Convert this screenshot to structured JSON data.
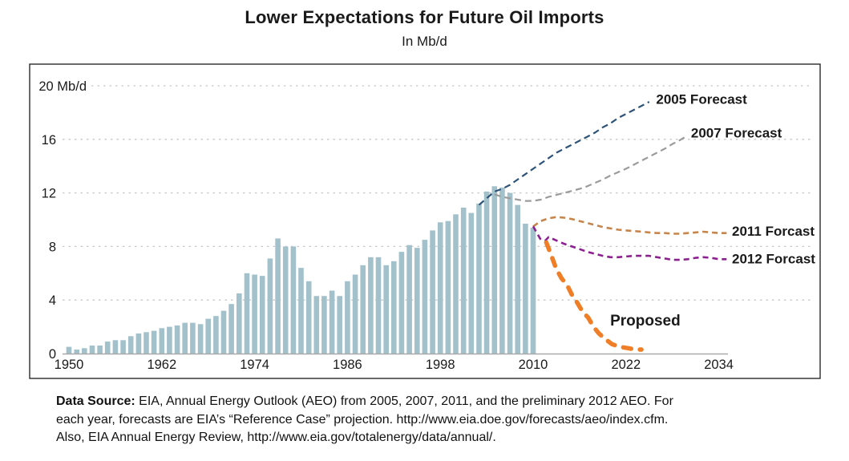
{
  "chart_data": {
    "type": "bar+line",
    "title": "Lower Expectations for Future Oil Imports",
    "subtitle": "In Mb/d",
    "ylabel": "Mb/d",
    "ylim": [
      0,
      20
    ],
    "grid": "dotted horizontal",
    "legend_position": "labels at line ends",
    "yticks": [
      {
        "value": 20,
        "label": "20 Mb/d"
      },
      {
        "value": 16,
        "label": "16"
      },
      {
        "value": 12,
        "label": "12"
      },
      {
        "value": 8,
        "label": "8"
      },
      {
        "value": 4,
        "label": "4"
      },
      {
        "value": 0,
        "label": "0"
      }
    ],
    "xticks": [
      "1950",
      "1962",
      "1974",
      "1986",
      "1998",
      "2010",
      "2022",
      "2034"
    ],
    "bars": {
      "name": "Historical net oil imports",
      "color": "#a3c1cb",
      "years": [
        1950,
        1951,
        1952,
        1953,
        1954,
        1955,
        1956,
        1957,
        1958,
        1959,
        1960,
        1961,
        1962,
        1963,
        1964,
        1965,
        1966,
        1967,
        1968,
        1969,
        1970,
        1971,
        1972,
        1973,
        1974,
        1975,
        1976,
        1977,
        1978,
        1979,
        1980,
        1981,
        1982,
        1983,
        1984,
        1985,
        1986,
        1987,
        1988,
        1989,
        1990,
        1991,
        1992,
        1993,
        1994,
        1995,
        1996,
        1997,
        1998,
        1999,
        2000,
        2001,
        2002,
        2003,
        2004,
        2005,
        2006,
        2007,
        2008,
        2009,
        2010
      ],
      "values": [
        0.5,
        0.3,
        0.4,
        0.6,
        0.6,
        0.9,
        1.0,
        1.0,
        1.3,
        1.5,
        1.6,
        1.7,
        1.9,
        2.0,
        2.1,
        2.3,
        2.3,
        2.2,
        2.6,
        2.8,
        3.2,
        3.7,
        4.5,
        6.0,
        5.9,
        5.8,
        7.1,
        8.6,
        8.0,
        8.0,
        6.4,
        5.4,
        4.3,
        4.3,
        4.7,
        4.3,
        5.4,
        5.9,
        6.6,
        7.2,
        7.2,
        6.6,
        6.9,
        7.6,
        8.1,
        7.9,
        8.5,
        9.2,
        9.8,
        9.9,
        10.4,
        10.9,
        10.5,
        11.2,
        12.1,
        12.5,
        12.4,
        12.0,
        11.1,
        9.7,
        9.4
      ]
    },
    "lines": [
      {
        "name": "2005 Forecast",
        "color": "#2d5379",
        "width": 2.2,
        "dash": "8 5",
        "points": [
          [
            2003,
            11.1
          ],
          [
            2004,
            11.6
          ],
          [
            2005,
            12.1
          ],
          [
            2006,
            12.3
          ],
          [
            2007,
            12.6
          ],
          [
            2008,
            13.0
          ],
          [
            2009,
            13.4
          ],
          [
            2010,
            13.8
          ],
          [
            2011,
            14.2
          ],
          [
            2012,
            14.6
          ],
          [
            2013,
            15.0
          ],
          [
            2014,
            15.3
          ],
          [
            2015,
            15.6
          ],
          [
            2016,
            15.9
          ],
          [
            2017,
            16.2
          ],
          [
            2018,
            16.5
          ],
          [
            2019,
            16.9
          ],
          [
            2020,
            17.2
          ],
          [
            2021,
            17.6
          ],
          [
            2022,
            17.9
          ],
          [
            2023,
            18.2
          ],
          [
            2024,
            18.5
          ],
          [
            2025,
            18.8
          ]
        ]
      },
      {
        "name": "2007 Forecast",
        "color": "#9b9b9b",
        "width": 2.2,
        "dash": "8 5",
        "points": [
          [
            2005,
            11.9
          ],
          [
            2006,
            11.7
          ],
          [
            2007,
            11.6
          ],
          [
            2008,
            11.5
          ],
          [
            2009,
            11.4
          ],
          [
            2010,
            11.4
          ],
          [
            2011,
            11.5
          ],
          [
            2012,
            11.7
          ],
          [
            2013,
            11.85
          ],
          [
            2014,
            12.0
          ],
          [
            2015,
            12.15
          ],
          [
            2016,
            12.3
          ],
          [
            2017,
            12.5
          ],
          [
            2018,
            12.75
          ],
          [
            2019,
            13.0
          ],
          [
            2020,
            13.3
          ],
          [
            2021,
            13.55
          ],
          [
            2022,
            13.8
          ],
          [
            2023,
            14.1
          ],
          [
            2024,
            14.4
          ],
          [
            2025,
            14.7
          ],
          [
            2026,
            15.0
          ],
          [
            2027,
            15.3
          ],
          [
            2028,
            15.65
          ],
          [
            2029,
            15.95
          ],
          [
            2030,
            16.3
          ]
        ]
      },
      {
        "name": "2011 Forcast",
        "color": "#c5854c",
        "width": 2.6,
        "dash": "7 5",
        "points": [
          [
            2010,
            9.5
          ],
          [
            2011,
            9.9
          ],
          [
            2012,
            10.1
          ],
          [
            2013,
            10.2
          ],
          [
            2014,
            10.15
          ],
          [
            2015,
            10.05
          ],
          [
            2016,
            9.9
          ],
          [
            2017,
            9.75
          ],
          [
            2018,
            9.6
          ],
          [
            2019,
            9.45
          ],
          [
            2020,
            9.35
          ],
          [
            2021,
            9.25
          ],
          [
            2022,
            9.2
          ],
          [
            2023,
            9.15
          ],
          [
            2024,
            9.1
          ],
          [
            2025,
            9.05
          ],
          [
            2026,
            9.0
          ],
          [
            2027,
            9.0
          ],
          [
            2028,
            8.95
          ],
          [
            2029,
            8.95
          ],
          [
            2030,
            9.0
          ],
          [
            2031,
            9.05
          ],
          [
            2032,
            9.1
          ],
          [
            2033,
            9.05
          ],
          [
            2034,
            9.0
          ],
          [
            2035,
            9.0
          ]
        ]
      },
      {
        "name": "2012 Forcast",
        "color": "#8d2090",
        "width": 2.6,
        "dash": "7 5",
        "points": [
          [
            2010,
            9.5
          ],
          [
            2011,
            8.5
          ],
          [
            2011.6,
            8.45
          ],
          [
            2012,
            8.7
          ],
          [
            2013,
            8.45
          ],
          [
            2014,
            8.2
          ],
          [
            2015,
            8.0
          ],
          [
            2016,
            7.8
          ],
          [
            2017,
            7.6
          ],
          [
            2018,
            7.45
          ],
          [
            2019,
            7.3
          ],
          [
            2020,
            7.2
          ],
          [
            2021,
            7.2
          ],
          [
            2022,
            7.25
          ],
          [
            2023,
            7.3
          ],
          [
            2024,
            7.3
          ],
          [
            2025,
            7.3
          ],
          [
            2026,
            7.2
          ],
          [
            2027,
            7.1
          ],
          [
            2028,
            7.0
          ],
          [
            2029,
            7.0
          ],
          [
            2030,
            7.05
          ],
          [
            2031,
            7.15
          ],
          [
            2032,
            7.2
          ],
          [
            2033,
            7.15
          ],
          [
            2034,
            7.05
          ],
          [
            2035,
            7.05
          ]
        ]
      },
      {
        "name": "Proposed",
        "color": "#f07e27",
        "width": 5.5,
        "dash": "10 11",
        "cap": "round",
        "points": [
          [
            2011.7,
            8.3
          ],
          [
            2012.3,
            7.4
          ],
          [
            2013,
            6.3
          ],
          [
            2013.7,
            5.6
          ],
          [
            2014.4,
            5.1
          ],
          [
            2015,
            4.4
          ],
          [
            2015.7,
            3.8
          ],
          [
            2016.4,
            3.1
          ],
          [
            2017.1,
            2.7
          ],
          [
            2017.8,
            2.0
          ],
          [
            2018.5,
            1.5
          ],
          [
            2019.3,
            1.1
          ],
          [
            2020.2,
            0.7
          ],
          [
            2021.2,
            0.5
          ],
          [
            2022.3,
            0.4
          ],
          [
            2023.2,
            0.3
          ],
          [
            2024,
            0.3
          ]
        ]
      }
    ],
    "annotations": [
      {
        "text": "2005 Forecast",
        "year": 2025.9,
        "value": 19.0,
        "anchor": "start",
        "weight": "600",
        "size": 17
      },
      {
        "text": "2007 Forecast",
        "year": 2030.4,
        "value": 16.5,
        "anchor": "start",
        "weight": "600",
        "size": 17
      },
      {
        "text": "2011 Forcast",
        "year": 2035.7,
        "value": 9.15,
        "anchor": "start",
        "weight": "600",
        "size": 17
      },
      {
        "text": "2012 Forcast",
        "year": 2035.7,
        "value": 7.1,
        "anchor": "start",
        "weight": "600",
        "size": 17
      },
      {
        "text": "Proposed",
        "year": 2024.5,
        "value": 2.45,
        "anchor": "middle",
        "weight": "700",
        "size": 19
      }
    ]
  },
  "source": {
    "label": "Data Source:",
    "lines": [
      " EIA, Annual Energy Outlook (AEO) from 2005, 2007, 2011, and the preliminary 2012 AEO. For",
      "each year, forecasts are EIA’s “Reference Case” projection. http://www.eia.doe.gov/forecasts/aeo/index.cfm.",
      "Also, EIA Annual Energy Review, http://www.eia.gov/totalenergy/data/annual/."
    ]
  },
  "colors": {
    "bars": "#a3c1cb",
    "forecast_2005": "#2d5379",
    "forecast_2007": "#9b9b9b",
    "forecast_2011": "#c5854c",
    "forecast_2012": "#8d2090",
    "proposed": "#f07e27",
    "gridline": "#c8c8c8",
    "axis_line": "#a9a9a9",
    "plot_border": "#1a1a1a"
  }
}
